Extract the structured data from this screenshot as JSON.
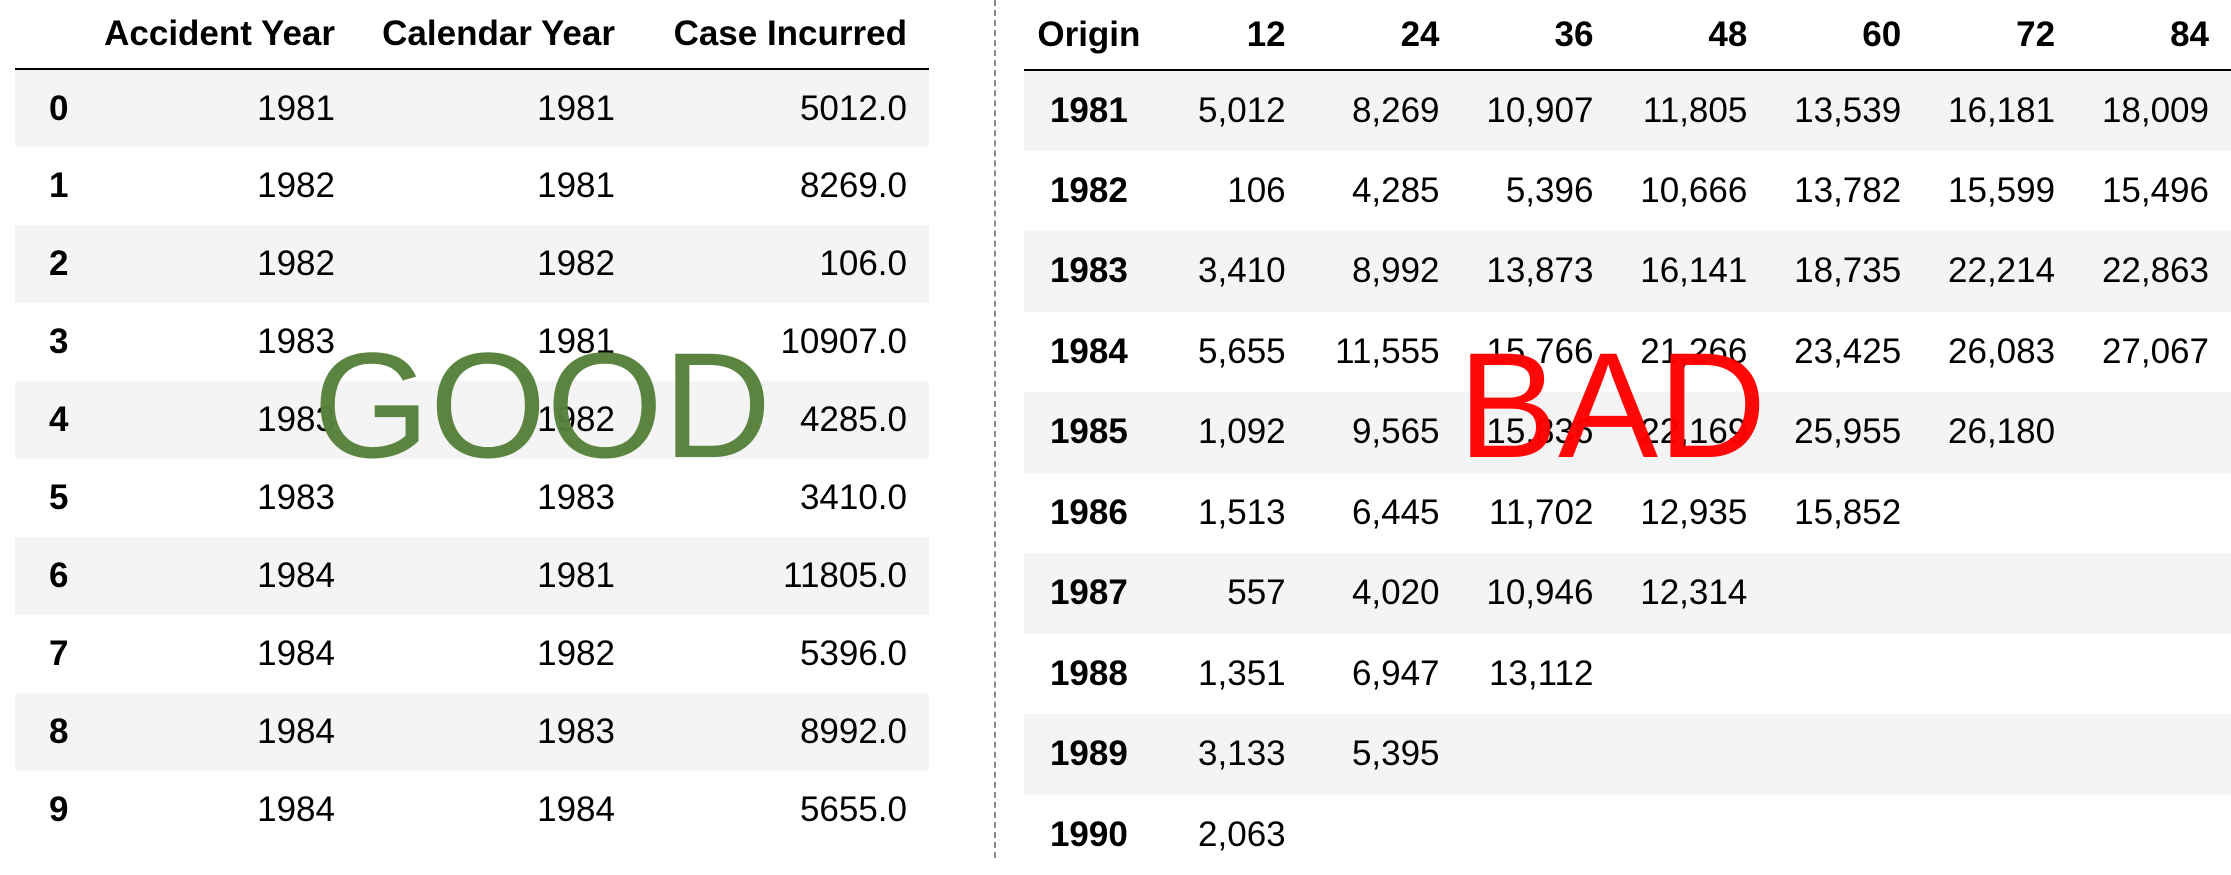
{
  "left_table": {
    "headers": [
      "",
      "Accident Year",
      "Calendar Year",
      "Case Incurred"
    ],
    "rows": [
      [
        "0",
        "1981",
        "1981",
        "5012.0"
      ],
      [
        "1",
        "1982",
        "1981",
        "8269.0"
      ],
      [
        "2",
        "1982",
        "1982",
        "106.0"
      ],
      [
        "3",
        "1983",
        "1981",
        "10907.0"
      ],
      [
        "4",
        "1983",
        "1982",
        "4285.0"
      ],
      [
        "5",
        "1983",
        "1983",
        "3410.0"
      ],
      [
        "6",
        "1984",
        "1981",
        "11805.0"
      ],
      [
        "7",
        "1984",
        "1982",
        "5396.0"
      ],
      [
        "8",
        "1984",
        "1983",
        "8992.0"
      ],
      [
        "9",
        "1984",
        "1984",
        "5655.0"
      ]
    ]
  },
  "right_table": {
    "headers": [
      "Origin",
      "12",
      "24",
      "36",
      "48",
      "60",
      "72",
      "84"
    ],
    "rows": [
      [
        "1981",
        "5,012",
        "8,269",
        "10,907",
        "11,805",
        "13,539",
        "16,181",
        "18,009"
      ],
      [
        "1982",
        "106",
        "4,285",
        "5,396",
        "10,666",
        "13,782",
        "15,599",
        "15,496"
      ],
      [
        "1983",
        "3,410",
        "8,992",
        "13,873",
        "16,141",
        "18,735",
        "22,214",
        "22,863"
      ],
      [
        "1984",
        "5,655",
        "11,555",
        "15,766",
        "21,266",
        "23,425",
        "26,083",
        "27,067"
      ],
      [
        "1985",
        "1,092",
        "9,565",
        "15,836",
        "22,169",
        "25,955",
        "26,180",
        ""
      ],
      [
        "1986",
        "1,513",
        "6,445",
        "11,702",
        "12,935",
        "15,852",
        "",
        ""
      ],
      [
        "1987",
        "557",
        "4,020",
        "10,946",
        "12,314",
        "",
        "",
        ""
      ],
      [
        "1988",
        "1,351",
        "6,947",
        "13,112",
        "",
        "",
        "",
        ""
      ],
      [
        "1989",
        "3,133",
        "5,395",
        "",
        "",
        "",
        "",
        ""
      ],
      [
        "1990",
        "2,063",
        "",
        "",
        "",
        "",
        "",
        ""
      ]
    ]
  },
  "labels": {
    "good": "GOOD",
    "bad": "BAD",
    "good_color": "#56813a",
    "bad_color": "#ff0000"
  }
}
